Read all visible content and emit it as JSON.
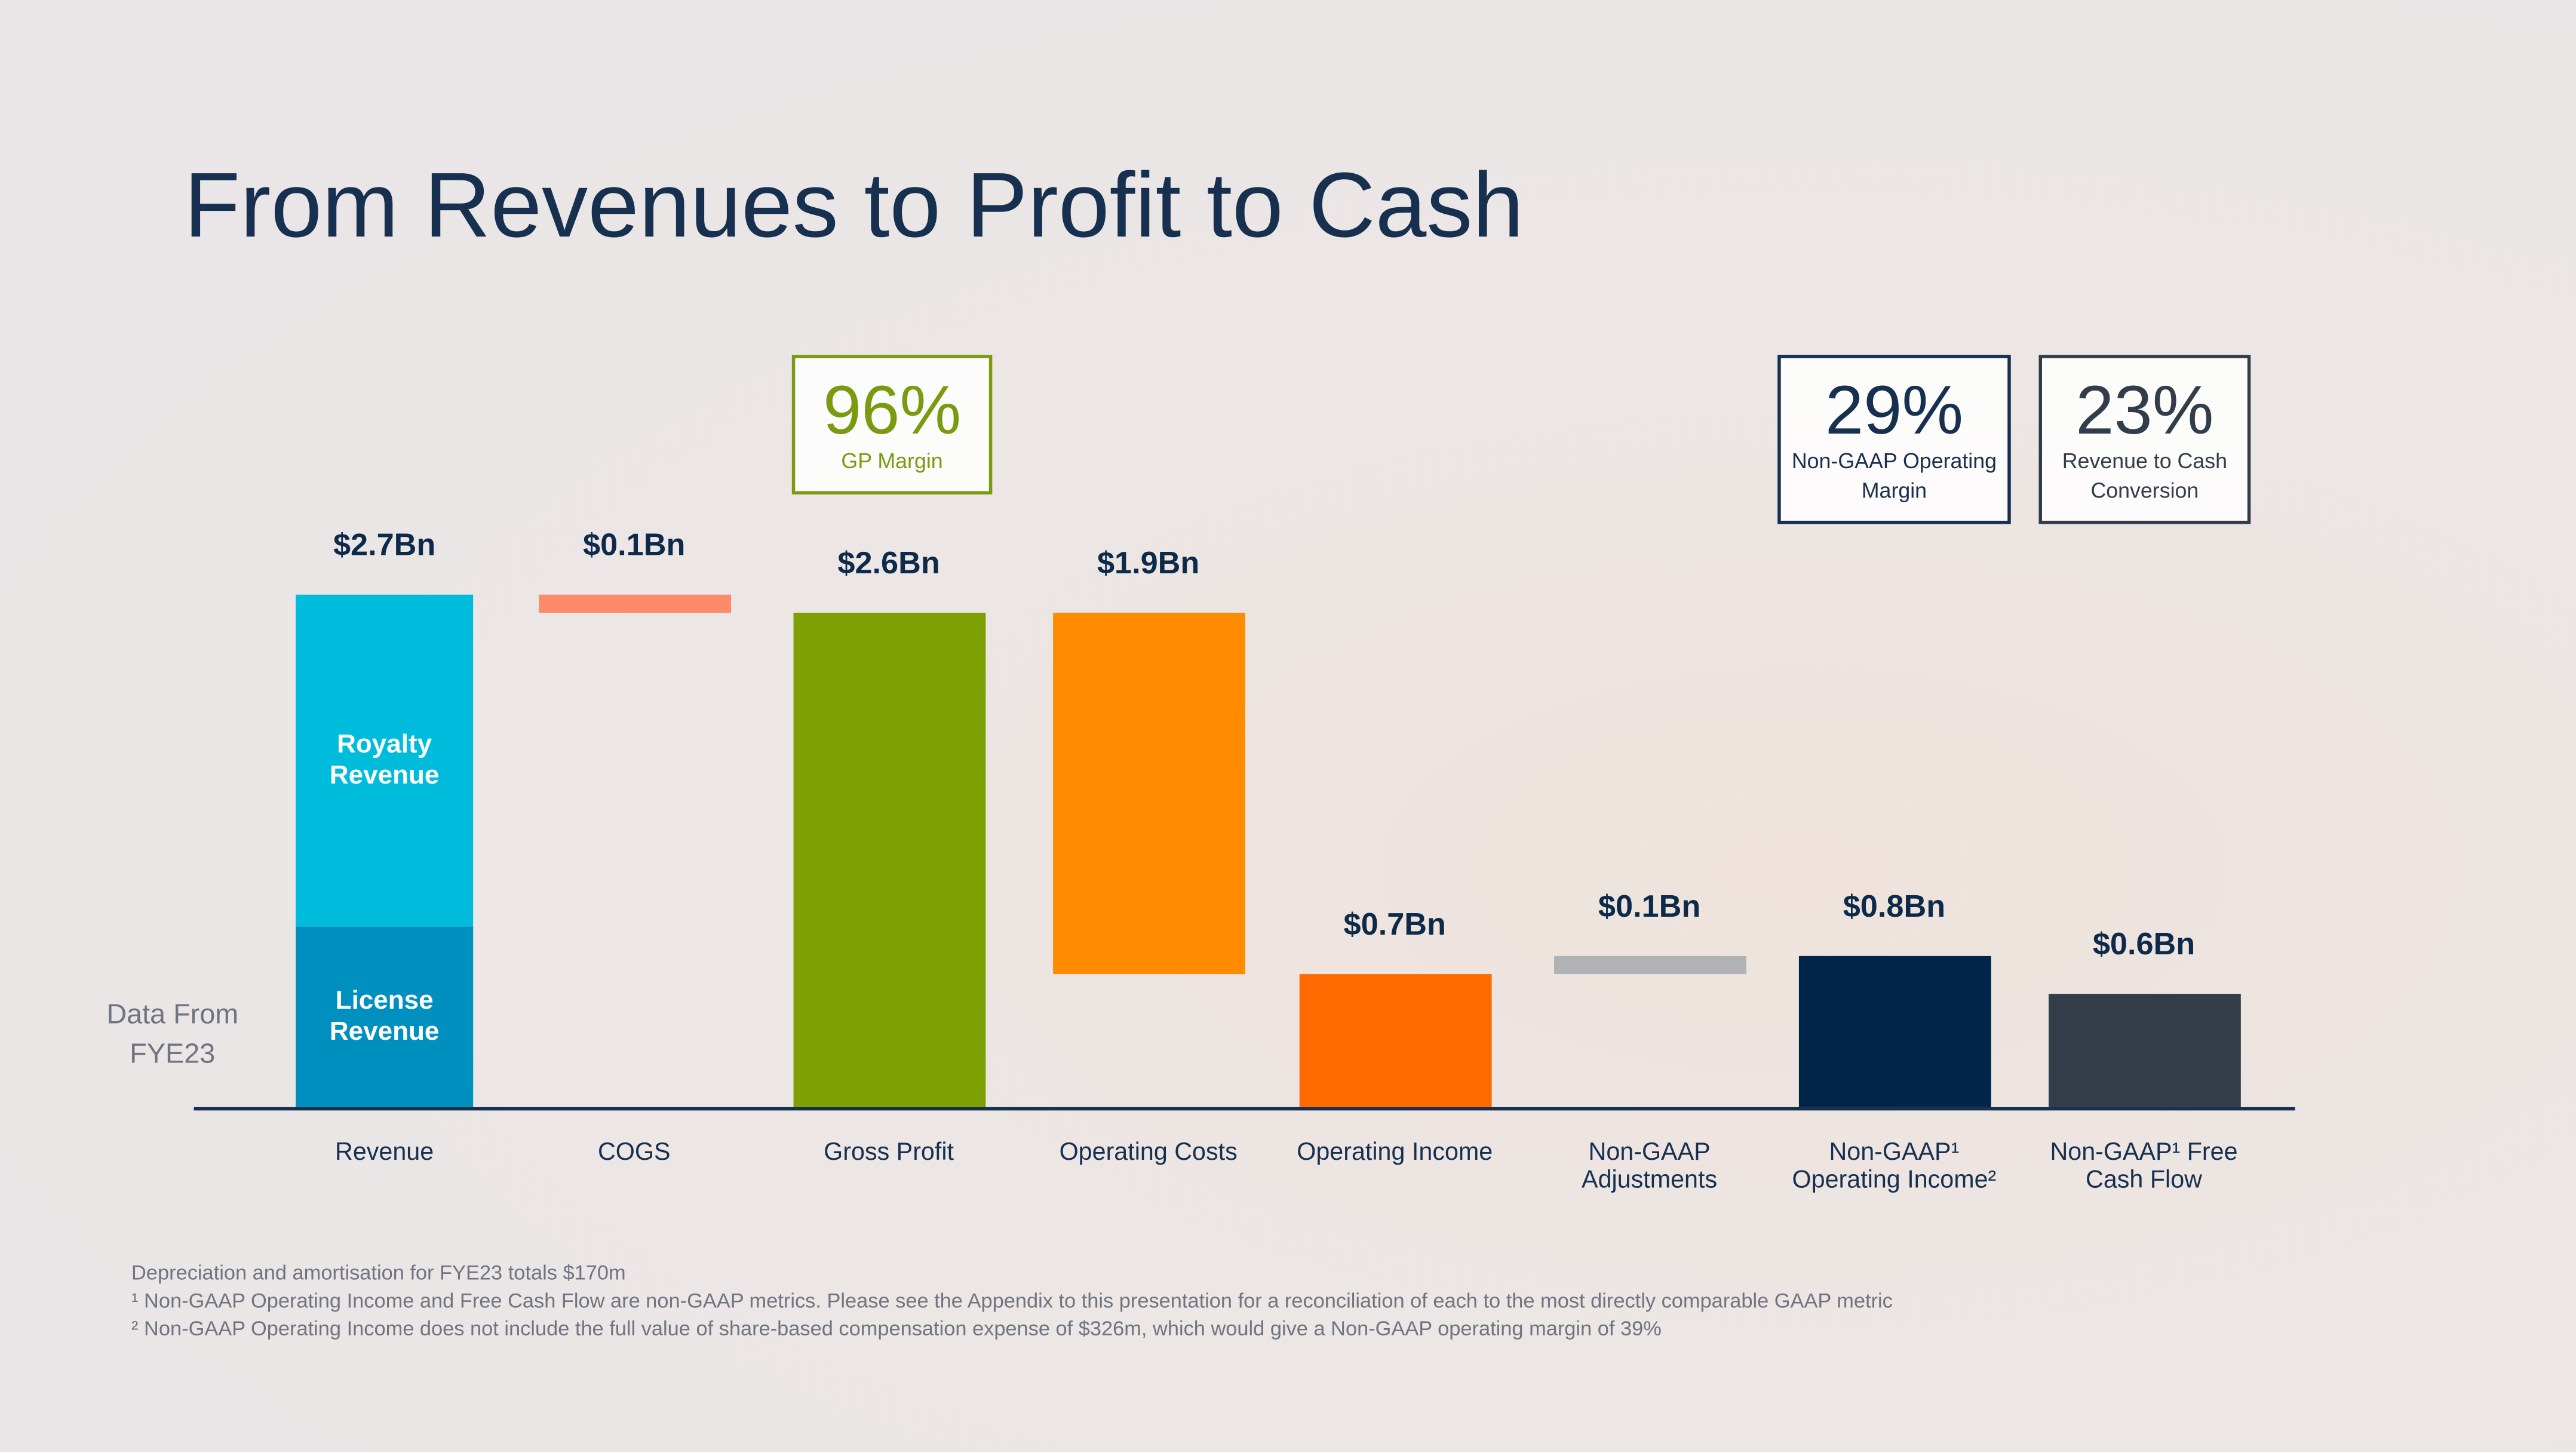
{
  "title": "From Revenues to Profit to Cash",
  "side_label": "Data From FYE23",
  "kpis": [
    {
      "value": "96%",
      "label": "GP Margin",
      "color": "#7a9a10"
    },
    {
      "value": "29%",
      "label": "Non-GAAP Operating Margin",
      "color": "#17304f"
    },
    {
      "value": "23%",
      "label": "Revenue to Cash Conversion",
      "color": "#333d4a"
    }
  ],
  "chart_data": {
    "type": "waterfall",
    "categories": [
      "Revenue",
      "COGS",
      "Gross Profit",
      "Operating Costs",
      "Operating Income",
      "Non-GAAP Adjustments",
      "Non-GAAP¹ Operating Income²",
      "Non-GAAP¹ Free Cash Flow"
    ],
    "values": [
      2.7,
      0.1,
      2.6,
      1.9,
      0.7,
      0.1,
      0.8,
      0.6
    ],
    "value_labels": [
      "$2.7Bn",
      "$0.1Bn",
      "$2.6Bn",
      "$1.9Bn",
      "$0.7Bn",
      "$0.1Bn",
      "$0.8Bn",
      "$0.6Bn"
    ],
    "steps": [
      "total",
      "decrease",
      "total",
      "decrease",
      "total",
      "increase",
      "total",
      "total"
    ],
    "colors": [
      "#00bcdc",
      "#ff8a6a",
      "#7ea000",
      "#ff8c00",
      "#ff6a00",
      "#b0b2b6",
      "#002548",
      "#333d4a"
    ],
    "revenue_segments": [
      {
        "name": "License Revenue",
        "value": 0.95,
        "color": "#0090c0"
      },
      {
        "name": "Royalty Revenue",
        "value": 1.75,
        "color": "#00bcdc"
      }
    ]
  },
  "footnotes": [
    "Depreciation and amortisation for FYE23 totals $170m",
    "¹ Non-GAAP Operating Income and Free Cash Flow are non-GAAP metrics. Please see the Appendix to this presentation for a reconciliation of each to the most directly comparable GAAP metric",
    "² Non-GAAP Operating Income does not include the full value of share-based compensation expense of $326m, which would give a Non-GAAP operating margin of 39%"
  ]
}
